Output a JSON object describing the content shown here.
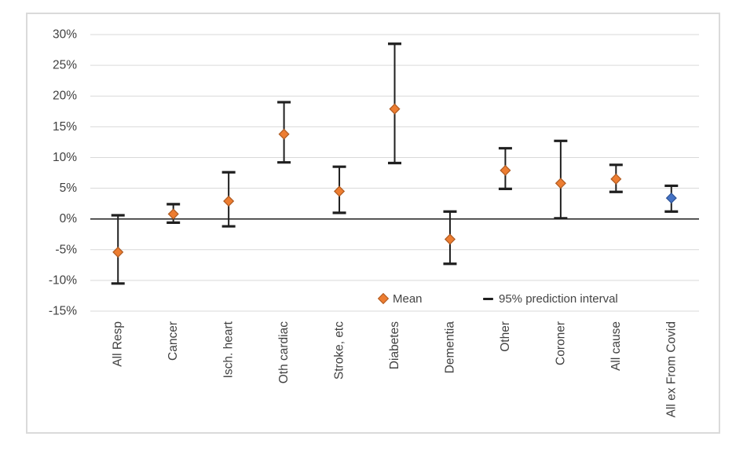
{
  "chart_data": {
    "type": "scatter",
    "subtype": "mean-with-error-bars",
    "title": "",
    "xlabel": "",
    "ylabel": "",
    "categories": [
      "All Resp",
      "Cancer",
      "Isch. heart",
      "Oth cardiac",
      "Stroke, etc",
      "Diabetes",
      "Dementia",
      "Other",
      "Coroner",
      "All cause",
      "All ex From Covid"
    ],
    "series": [
      {
        "name": "Mean",
        "values": [
          -5.4,
          0.8,
          2.9,
          13.8,
          4.5,
          17.9,
          -3.3,
          7.9,
          5.8,
          6.5,
          3.4
        ]
      }
    ],
    "intervals": {
      "name": "95% prediction interval",
      "low": [
        -10.5,
        -0.6,
        -1.2,
        9.2,
        1.0,
        9.1,
        -7.3,
        4.9,
        0.1,
        4.4,
        1.2
      ],
      "high": [
        0.6,
        2.4,
        7.6,
        19.0,
        8.5,
        28.5,
        1.2,
        11.5,
        12.7,
        8.8,
        5.4
      ]
    },
    "highlight_index": 10,
    "ylim": [
      -15,
      30
    ],
    "ytick_step": 5,
    "yticks": [
      {
        "label": "30%",
        "value": 30
      },
      {
        "label": "25%",
        "value": 25
      },
      {
        "label": "20%",
        "value": 20
      },
      {
        "label": "15%",
        "value": 15
      },
      {
        "label": "10%",
        "value": 10
      },
      {
        "label": "5%",
        "value": 5
      },
      {
        "label": "0%",
        "value": 0
      },
      {
        "label": "-5%",
        "value": -5
      },
      {
        "label": "-10%",
        "value": -10
      },
      {
        "label": "-15%",
        "value": -15
      }
    ],
    "grid": true,
    "legend": {
      "position": "inside-bottom",
      "items": [
        {
          "label": "Mean",
          "marker": "diamond",
          "color": "#ED7D31"
        },
        {
          "label": "95% prediction interval",
          "marker": "dash",
          "color": "#1F1F1F"
        }
      ]
    }
  },
  "colors": {
    "mean_fill": "#ED7D31",
    "mean_border": "#AE5A21",
    "highlight_fill": "#4472C4",
    "highlight_border": "#2E5395",
    "errorbar": "#1f1f1f",
    "gridline": "#d9d9d9",
    "axis_line": "#262626",
    "tick_label": "#404040",
    "panel_border": "#dadada"
  }
}
